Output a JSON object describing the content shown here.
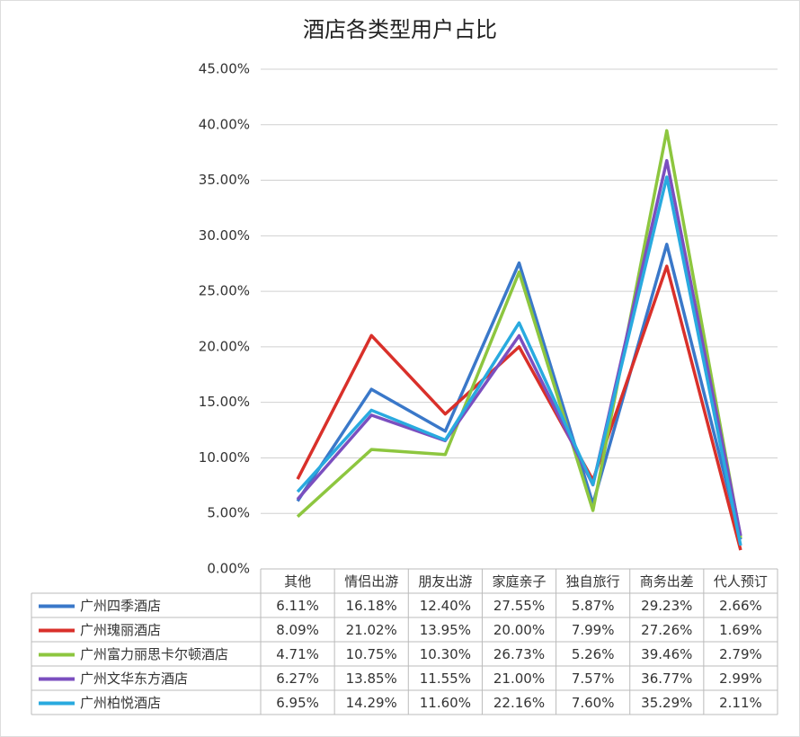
{
  "chart_data": {
    "type": "line",
    "title": "酒店各类型用户占比",
    "categories": [
      "其他",
      "情侣出游",
      "朋友出游",
      "家庭亲子",
      "独自旅行",
      "商务出差",
      "代人预订"
    ],
    "ylim": [
      0,
      45
    ],
    "yticks": [
      {
        "value": 0,
        "label": "0.00%"
      },
      {
        "value": 5,
        "label": "5.00%"
      },
      {
        "value": 10,
        "label": "10.00%"
      },
      {
        "value": 15,
        "label": "15.00%"
      },
      {
        "value": 20,
        "label": "20.00%"
      },
      {
        "value": 25,
        "label": "25.00%"
      },
      {
        "value": 30,
        "label": "30.00%"
      },
      {
        "value": 35,
        "label": "35.00%"
      },
      {
        "value": 40,
        "label": "40.00%"
      },
      {
        "value": 45,
        "label": "45.00%"
      }
    ],
    "grid": true,
    "series": [
      {
        "name": "广州四季酒店",
        "color": "#3a78c9",
        "values": [
          6.11,
          16.18,
          12.4,
          27.55,
          5.87,
          29.23,
          2.66
        ],
        "value_labels": [
          "6.11%",
          "16.18%",
          "12.40%",
          "27.55%",
          "5.87%",
          "29.23%",
          "2.66%"
        ]
      },
      {
        "name": "广州瑰丽酒店",
        "color": "#d9302a",
        "values": [
          8.09,
          21.02,
          13.95,
          20.0,
          7.99,
          27.26,
          1.69
        ],
        "value_labels": [
          "8.09%",
          "21.02%",
          "13.95%",
          "20.00%",
          "7.99%",
          "27.26%",
          "1.69%"
        ]
      },
      {
        "name": "广州富力丽思卡尔顿酒店",
        "color": "#8dc63f",
        "values": [
          4.71,
          10.75,
          10.3,
          26.73,
          5.26,
          39.46,
          2.79
        ],
        "value_labels": [
          "4.71%",
          "10.75%",
          "10.30%",
          "26.73%",
          "5.26%",
          "39.46%",
          "2.79%"
        ]
      },
      {
        "name": "广州文华东方酒店",
        "color": "#7b4fbf",
        "values": [
          6.27,
          13.85,
          11.55,
          21.0,
          7.57,
          36.77,
          2.99
        ],
        "value_labels": [
          "6.27%",
          "13.85%",
          "11.55%",
          "21.00%",
          "7.57%",
          "36.77%",
          "2.99%"
        ]
      },
      {
        "name": "广州柏悦酒店",
        "color": "#29aadf",
        "values": [
          6.95,
          14.29,
          11.6,
          22.16,
          7.6,
          35.29,
          2.11
        ],
        "value_labels": [
          "6.95%",
          "14.29%",
          "11.60%",
          "22.16%",
          "7.60%",
          "35.29%",
          "2.11%"
        ]
      }
    ]
  }
}
